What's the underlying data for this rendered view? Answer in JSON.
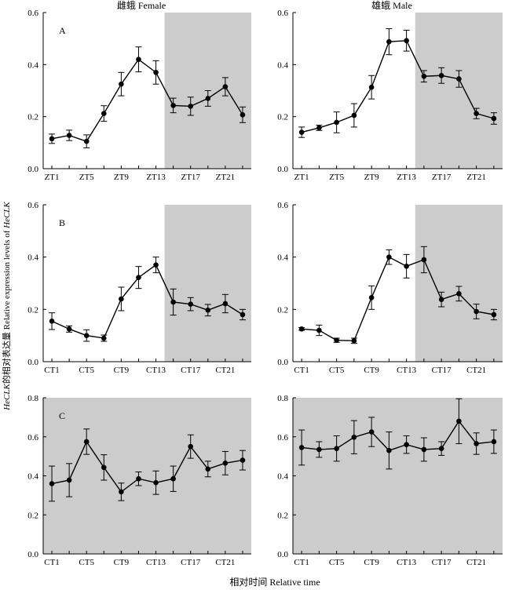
{
  "titles": {
    "female": "雌蛾 Female",
    "male": "雄蛾 Male"
  },
  "ylabel_prefix": "HeCLK",
  "ylabel_mid": "的相对表达量 Relative expression levels of ",
  "ylabel_suffix": "HeCLK",
  "xlabel": "相对时间 Relative time",
  "chart_data": [
    {
      "type": "line",
      "panel_label": "A",
      "sex": "female",
      "x_tick_labels": [
        "ZT1",
        "ZT5",
        "ZT9",
        "ZT13",
        "ZT17",
        "ZT21"
      ],
      "x": [
        1,
        3,
        5,
        7,
        9,
        11,
        13,
        15,
        17,
        19,
        21,
        23
      ],
      "values": [
        0.115,
        0.128,
        0.105,
        0.212,
        0.325,
        0.42,
        0.37,
        0.243,
        0.24,
        0.27,
        0.315,
        0.207
      ],
      "errors": [
        0.018,
        0.02,
        0.025,
        0.03,
        0.045,
        0.048,
        0.045,
        0.028,
        0.035,
        0.03,
        0.035,
        0.03
      ],
      "ylim": [
        0,
        0.6
      ],
      "yticks": [
        "0.0",
        "0.2",
        "0.4",
        "0.6"
      ],
      "dark_phase": [
        14,
        24
      ]
    },
    {
      "type": "line",
      "panel_label": "",
      "sex": "male",
      "x_tick_labels": [
        "ZT1",
        "ZT5",
        "ZT9",
        "ZT13",
        "ZT17",
        "ZT21"
      ],
      "x": [
        1,
        3,
        5,
        7,
        9,
        11,
        13,
        15,
        17,
        19,
        21,
        23
      ],
      "values": [
        0.14,
        0.157,
        0.178,
        0.205,
        0.313,
        0.488,
        0.492,
        0.355,
        0.358,
        0.345,
        0.212,
        0.193
      ],
      "errors": [
        0.02,
        0.01,
        0.04,
        0.045,
        0.045,
        0.05,
        0.04,
        0.022,
        0.03,
        0.032,
        0.02,
        0.022
      ],
      "ylim": [
        0,
        0.6
      ],
      "yticks": [
        "0.0",
        "0.2",
        "0.4",
        "0.6"
      ],
      "dark_phase": [
        14,
        24
      ]
    },
    {
      "type": "line",
      "panel_label": "B",
      "sex": "female",
      "x_tick_labels": [
        "CT1",
        "CT5",
        "CT9",
        "CT13",
        "CT17",
        "CT21"
      ],
      "x": [
        1,
        3,
        5,
        7,
        9,
        11,
        13,
        15,
        17,
        19,
        21,
        23
      ],
      "values": [
        0.155,
        0.125,
        0.1,
        0.09,
        0.24,
        0.322,
        0.37,
        0.228,
        0.22,
        0.197,
        0.222,
        0.18
      ],
      "errors": [
        0.032,
        0.012,
        0.022,
        0.012,
        0.045,
        0.042,
        0.03,
        0.05,
        0.025,
        0.022,
        0.035,
        0.02
      ],
      "ylim": [
        0,
        0.6
      ],
      "yticks": [
        "0.0",
        "0.2",
        "0.4",
        "0.6"
      ],
      "dark_phase": [
        14,
        24
      ]
    },
    {
      "type": "line",
      "panel_label": "",
      "sex": "male",
      "x_tick_labels": [
        "CT1",
        "CT5",
        "CT9",
        "CT13",
        "CT17",
        "CT21"
      ],
      "x": [
        1,
        3,
        5,
        7,
        9,
        11,
        13,
        15,
        17,
        19,
        21,
        23
      ],
      "values": [
        0.125,
        0.12,
        0.082,
        0.08,
        0.245,
        0.4,
        0.365,
        0.39,
        0.238,
        0.26,
        0.192,
        0.18
      ],
      "errors": [
        0.005,
        0.02,
        0.008,
        0.01,
        0.045,
        0.028,
        0.045,
        0.05,
        0.028,
        0.028,
        0.028,
        0.02
      ],
      "ylim": [
        0,
        0.6
      ],
      "yticks": [
        "0.0",
        "0.2",
        "0.4",
        "0.6"
      ],
      "dark_phase": [
        14,
        24
      ]
    },
    {
      "type": "line",
      "panel_label": "C",
      "sex": "female",
      "x_tick_labels": [
        "CT1",
        "CT5",
        "CT9",
        "CT13",
        "CT17",
        "CT21"
      ],
      "x": [
        1,
        3,
        5,
        7,
        9,
        11,
        13,
        15,
        17,
        19,
        21,
        23
      ],
      "values": [
        0.36,
        0.378,
        0.575,
        0.443,
        0.318,
        0.385,
        0.365,
        0.385,
        0.55,
        0.435,
        0.465,
        0.48
      ],
      "errors": [
        0.09,
        0.085,
        0.065,
        0.065,
        0.045,
        0.035,
        0.06,
        0.065,
        0.06,
        0.04,
        0.06,
        0.05
      ],
      "ylim": [
        0,
        0.8
      ],
      "yticks": [
        "0.0",
        "0.2",
        "0.4",
        "0.6",
        "0.8"
      ],
      "dark_phase": [
        0,
        24
      ]
    },
    {
      "type": "line",
      "panel_label": "",
      "sex": "male",
      "x_tick_labels": [
        "CT1",
        "CT5",
        "CT9",
        "CT13",
        "CT17",
        "CT21"
      ],
      "x": [
        1,
        3,
        5,
        7,
        9,
        11,
        13,
        15,
        17,
        19,
        21,
        23
      ],
      "values": [
        0.545,
        0.535,
        0.54,
        0.598,
        0.625,
        0.53,
        0.56,
        0.535,
        0.54,
        0.68,
        0.565,
        0.575
      ],
      "errors": [
        0.09,
        0.04,
        0.065,
        0.085,
        0.075,
        0.095,
        0.045,
        0.06,
        0.035,
        0.115,
        0.055,
        0.06
      ],
      "ylim": [
        0,
        0.8
      ],
      "yticks": [
        "0.0",
        "0.2",
        "0.4",
        "0.6",
        "0.8"
      ],
      "dark_phase": [
        0,
        24
      ]
    }
  ]
}
